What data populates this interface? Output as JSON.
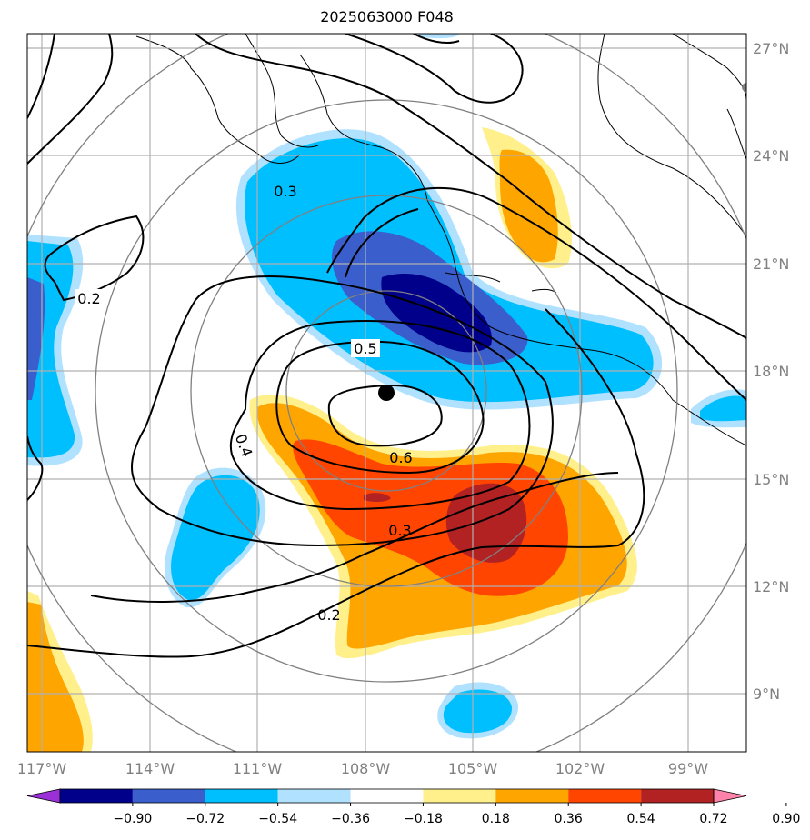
{
  "title": "2025063000 F048",
  "lon_labels": [
    "117°W",
    "114°W",
    "111°W",
    "108°W",
    "105°W",
    "102°W",
    "99°W"
  ],
  "lat_labels": [
    "27°N",
    "24°N",
    "21°N",
    "18°N",
    "15°N",
    "12°N",
    "9°N"
  ],
  "colorbar": {
    "levels": [
      "−0.90",
      "−0.72",
      "−0.54",
      "−0.36",
      "−0.18",
      "0.18",
      "0.36",
      "0.54",
      "0.72",
      "0.90"
    ],
    "colors": [
      "#9b30d9",
      "#00008b",
      "#3a5fcd",
      "#00bfff",
      "#b0e2ff",
      "#ffffff",
      "#fff08c",
      "#ffa500",
      "#ff4500",
      "#b22222",
      "#ff82ab"
    ]
  },
  "contour_labels": [
    "0.2",
    "0.3",
    "0.5",
    "0.4",
    "0.6",
    "0.3",
    "0.2"
  ],
  "center_marker": "storm-center"
}
